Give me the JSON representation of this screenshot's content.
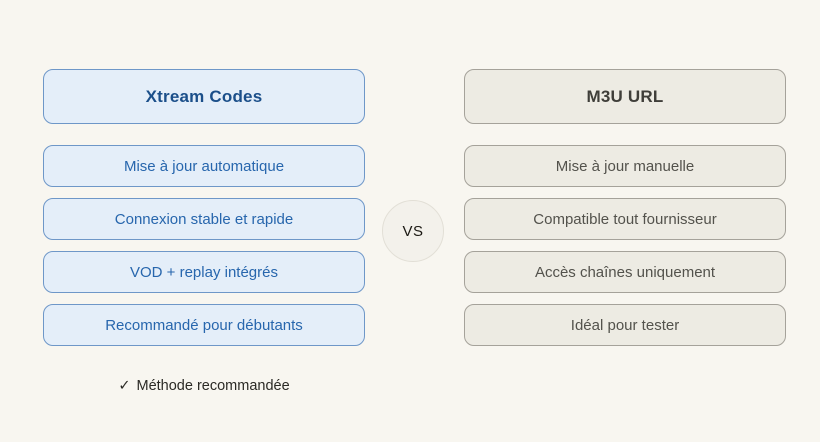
{
  "page": {
    "background_color": "#F8F6F0"
  },
  "left_column": {
    "header": "Xtream Codes",
    "items": [
      "Mise à jour automatique",
      "Connexion stable et rapide",
      "VOD + replay intégrés",
      "Recommandé pour débutants"
    ],
    "footer_check": "✓",
    "footer_text": "Méthode recommandée",
    "colors": {
      "box_fill": "#E4EEF9",
      "box_border": "#6E97C8",
      "header_text": "#1B4F8A",
      "item_text": "#2766AD"
    }
  },
  "vs_badge": {
    "label": "VS",
    "fill": "#F3F1EB",
    "border": "#E2DFD6",
    "text_color": "#1A1812"
  },
  "right_column": {
    "header": "M3U URL",
    "items": [
      "Mise à jour manuelle",
      "Compatible tout fournisseur",
      "Accès chaînes uniquement",
      "Idéal pour tester"
    ],
    "colors": {
      "box_fill": "#EDEBE3",
      "box_border": "#A5A29A",
      "header_text": "#3F3E39",
      "item_text": "#53524C"
    }
  }
}
